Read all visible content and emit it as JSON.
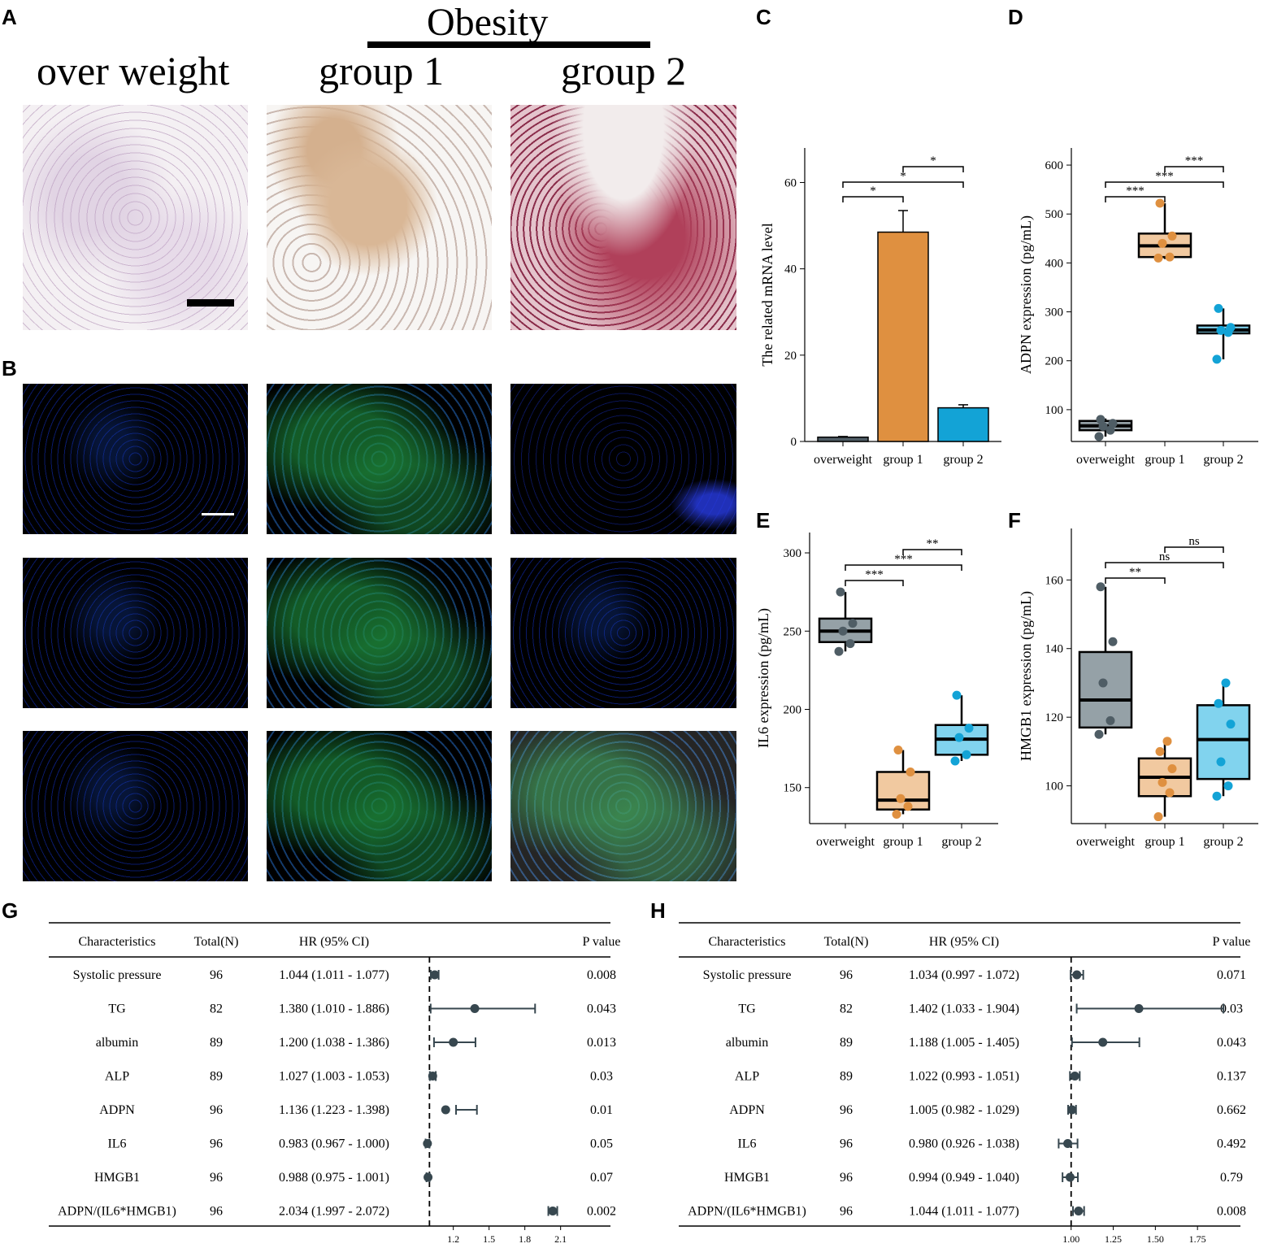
{
  "panels": {
    "a": "A",
    "b": "B",
    "c": "C",
    "d": "D",
    "e": "E",
    "f": "F",
    "g": "G",
    "h": "H"
  },
  "panel_a": {
    "obesity_label": "Obesity",
    "col1": "over weight",
    "col2": "group 1",
    "col3": "group 2"
  },
  "colors": {
    "overweight": "#4f5d65",
    "group1": "#df9040",
    "group2": "#13a3d6",
    "box_overweight": "#95a1a7",
    "box_group1": "#f1c9a0",
    "box_group2": "#81d3ee"
  },
  "chart_data": [
    {
      "id": "C",
      "type": "bar",
      "categories": [
        "overweight",
        "group 1",
        "group 2"
      ],
      "values": [
        1.0,
        48.5,
        7.8
      ],
      "errors": [
        0.15,
        5.0,
        0.7
      ],
      "ylabel": "The related mRNA level",
      "ylim": [
        0,
        68
      ],
      "yticks": [
        0,
        20,
        40,
        60
      ],
      "sig": [
        {
          "from": 1,
          "to": 2,
          "label": "*"
        },
        {
          "from": 0,
          "to": 1,
          "label": "*"
        },
        {
          "from": 0,
          "to": 2,
          "label": "*"
        }
      ]
    },
    {
      "id": "D",
      "type": "box",
      "categories": [
        "overweight",
        "group 1",
        "group 2"
      ],
      "boxes": [
        {
          "q1": 58,
          "median": 67,
          "q3": 77,
          "lo": 45,
          "hi": 82
        },
        {
          "q1": 412,
          "median": 435,
          "q3": 460,
          "lo": 408,
          "hi": 522
        },
        {
          "q1": 256,
          "median": 263,
          "q3": 272,
          "lo": 203,
          "hi": 307
        }
      ],
      "points": [
        [
          45,
          58,
          66,
          72,
          80
        ],
        [
          410,
          412,
          440,
          455,
          522
        ],
        [
          203,
          258,
          262,
          268,
          307
        ]
      ],
      "ylabel": "ADPN expression (pg/mL)",
      "ylim": [
        35,
        635
      ],
      "yticks": [
        100,
        200,
        300,
        400,
        500,
        600
      ],
      "sig": [
        {
          "from": 0,
          "to": 1,
          "label": "***"
        },
        {
          "from": 0,
          "to": 2,
          "label": "***"
        },
        {
          "from": 1,
          "to": 2,
          "label": "***"
        }
      ]
    },
    {
      "id": "E",
      "type": "box",
      "categories": [
        "overweight",
        "group 1",
        "group 2"
      ],
      "boxes": [
        {
          "q1": 243,
          "median": 250,
          "q3": 258,
          "lo": 237,
          "hi": 275
        },
        {
          "q1": 136,
          "median": 142,
          "q3": 160,
          "lo": 133,
          "hi": 174
        },
        {
          "q1": 171,
          "median": 181,
          "q3": 190,
          "lo": 167,
          "hi": 209
        }
      ],
      "points": [
        [
          237,
          242,
          250,
          255,
          275
        ],
        [
          133,
          138,
          143,
          160,
          174
        ],
        [
          167,
          171,
          182,
          188,
          209
        ]
      ],
      "ylabel": "IL6 expression (pg/mL)",
      "ylim": [
        127,
        313
      ],
      "yticks": [
        150,
        200,
        250,
        300
      ],
      "sig": [
        {
          "from": 0,
          "to": 1,
          "label": "***"
        },
        {
          "from": 0,
          "to": 2,
          "label": "***"
        },
        {
          "from": 1,
          "to": 2,
          "label": "**"
        }
      ]
    },
    {
      "id": "F",
      "type": "box",
      "categories": [
        "overweight",
        "group 1",
        "group 2"
      ],
      "boxes": [
        {
          "q1": 117,
          "median": 125,
          "q3": 139,
          "lo": 115,
          "hi": 158
        },
        {
          "q1": 97,
          "median": 102.5,
          "q3": 108,
          "lo": 91,
          "hi": 113
        },
        {
          "q1": 102,
          "median": 113.5,
          "q3": 123.5,
          "lo": 97,
          "hi": 130
        }
      ],
      "points": [
        [
          115,
          119,
          130,
          142,
          158
        ],
        [
          91,
          98,
          101,
          105,
          110,
          113
        ],
        [
          97,
          100,
          107,
          118,
          124,
          130
        ]
      ],
      "ylabel": "HMGB1 expression (pg/mL)",
      "ylim": [
        89,
        175
      ],
      "yticks": [
        100,
        120,
        140,
        160
      ],
      "sig": [
        {
          "from": 0,
          "to": 1,
          "label": "**"
        },
        {
          "from": 0,
          "to": 2,
          "label": "ns"
        },
        {
          "from": 1,
          "to": 2,
          "label": "ns"
        }
      ]
    },
    {
      "id": "G",
      "type": "forest",
      "headers": [
        "Characteristics",
        "Total(N)",
        "HR (95% CI)",
        "P value"
      ],
      "rows": [
        {
          "name": "Systolic pressure",
          "n": "96",
          "hr": "1.044 (1.011 - 1.077)",
          "p": "0.008",
          "est": 1.044,
          "lo": 1.011,
          "hi": 1.077
        },
        {
          "name": "TG",
          "n": "82",
          "hr": "1.380 (1.010 - 1.886)",
          "p": "0.043",
          "est": 1.38,
          "lo": 1.01,
          "hi": 1.886
        },
        {
          "name": "albumin",
          "n": "89",
          "hr": "1.200 (1.038 - 1.386)",
          "p": "0.013",
          "est": 1.2,
          "lo": 1.038,
          "hi": 1.386
        },
        {
          "name": "ALP",
          "n": "89",
          "hr": "1.027 (1.003 - 1.053)",
          "p": "0.03",
          "est": 1.027,
          "lo": 1.003,
          "hi": 1.053
        },
        {
          "name": "ADPN",
          "n": "96",
          "hr": "1.136 (1.223 - 1.398)",
          "p": "0.01",
          "est": 1.136,
          "lo": 1.223,
          "hi": 1.398
        },
        {
          "name": "IL6",
          "n": "96",
          "hr": "0.983 (0.967 - 1.000)",
          "p": "0.05",
          "est": 0.983,
          "lo": 0.967,
          "hi": 1.0
        },
        {
          "name": "HMGB1",
          "n": "96",
          "hr": "0.988 (0.975 - 1.001)",
          "p": "0.07",
          "est": 0.988,
          "lo": 0.975,
          "hi": 1.001
        },
        {
          "name": "ADPN/(IL6*HMGB1)",
          "n": "96",
          "hr": "2.034 (1.997 - 2.072)",
          "p": "0.002",
          "est": 2.034,
          "lo": 1.997,
          "hi": 2.072
        }
      ],
      "ref": 1.0,
      "xlim": [
        0.95,
        2.15
      ],
      "xticks": [
        "1.2",
        "1.5",
        "1.8",
        "2.1"
      ]
    },
    {
      "id": "H",
      "type": "forest",
      "headers": [
        "Characteristics",
        "Total(N)",
        "HR (95% CI)",
        "P value"
      ],
      "rows": [
        {
          "name": "Systolic pressure",
          "n": "96",
          "hr": "1.034 (0.997 - 1.072)",
          "p": "0.071",
          "est": 1.034,
          "lo": 0.997,
          "hi": 1.072
        },
        {
          "name": "TG",
          "n": "82",
          "hr": "1.402 (1.033 - 1.904)",
          "p": "0.03",
          "est": 1.402,
          "lo": 1.033,
          "hi": 1.904
        },
        {
          "name": "albumin",
          "n": "89",
          "hr": "1.188 (1.005 - 1.405)",
          "p": "0.043",
          "est": 1.188,
          "lo": 1.005,
          "hi": 1.405
        },
        {
          "name": "ALP",
          "n": "89",
          "hr": "1.022 (0.993 - 1.051)",
          "p": "0.137",
          "est": 1.022,
          "lo": 0.993,
          "hi": 1.051
        },
        {
          "name": "ADPN",
          "n": "96",
          "hr": "1.005 (0.982 - 1.029)",
          "p": "0.662",
          "est": 1.005,
          "lo": 0.982,
          "hi": 1.029
        },
        {
          "name": "IL6",
          "n": "96",
          "hr": "0.980 (0.926 - 1.038)",
          "p": "0.492",
          "est": 0.98,
          "lo": 0.926,
          "hi": 1.038
        },
        {
          "name": "HMGB1",
          "n": "96",
          "hr": "0.994 (0.949 - 1.040)",
          "p": "0.79",
          "est": 0.994,
          "lo": 0.949,
          "hi": 1.04
        },
        {
          "name": "ADPN/(IL6*HMGB1)",
          "n": "96",
          "hr": "1.044 (1.011 - 1.077)",
          "p": "0.008",
          "est": 1.044,
          "lo": 1.011,
          "hi": 1.077
        }
      ],
      "ref": 1.0,
      "xlim": [
        0.9,
        2.0
      ],
      "xticks": [
        "1.00",
        "1.25",
        "1.50",
        "1.75"
      ]
    }
  ]
}
